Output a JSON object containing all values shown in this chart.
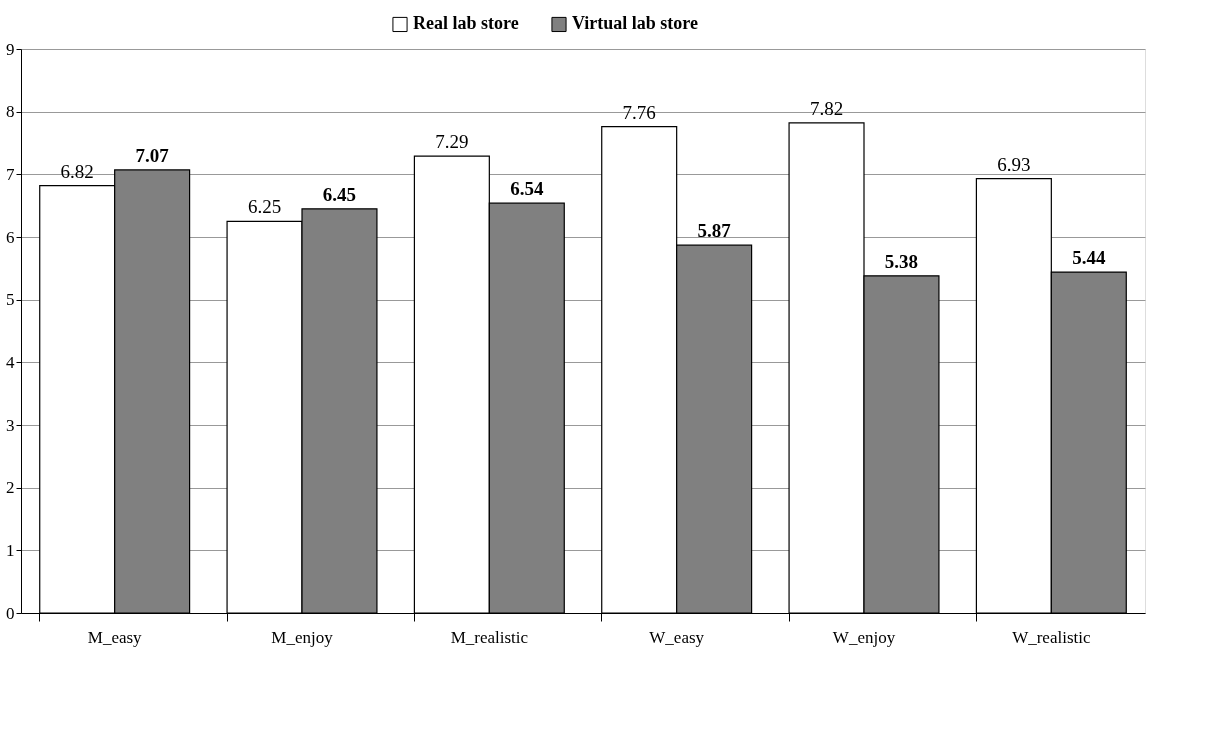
{
  "chart_data": {
    "type": "bar",
    "categories": [
      "M_easy",
      "M_enjoy",
      "M_realistic",
      "W_easy",
      "W_enjoy",
      "W_realistic"
    ],
    "series": [
      {
        "name": "Real lab store",
        "color": "#ffffff",
        "values": [
          6.82,
          6.25,
          7.29,
          7.76,
          7.82,
          6.93
        ]
      },
      {
        "name": "Virtual lab store",
        "color": "#808080",
        "values": [
          7.07,
          6.45,
          6.54,
          5.87,
          5.38,
          5.44
        ]
      }
    ],
    "ylim": [
      0,
      9
    ],
    "yticks": [
      0,
      1,
      2,
      3,
      4,
      5,
      6,
      7,
      8,
      9
    ],
    "grid": "y",
    "legend": "top",
    "data_labels": true
  }
}
